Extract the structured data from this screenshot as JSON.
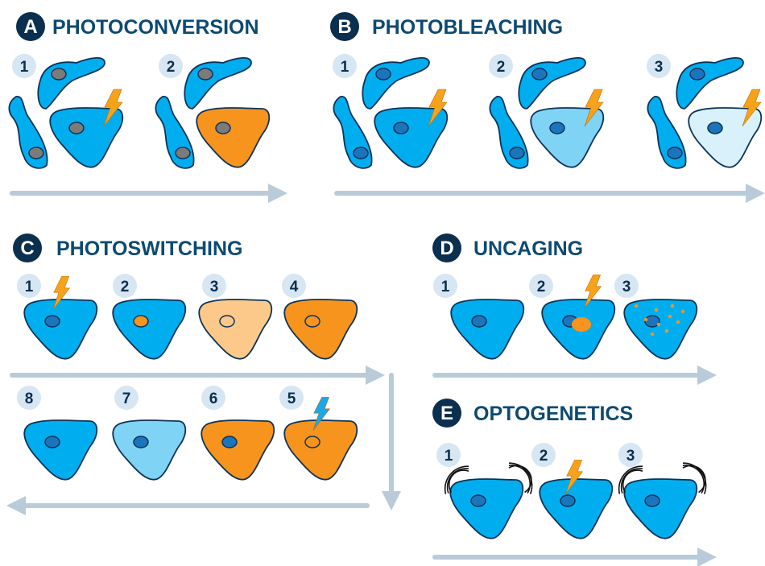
{
  "colors": {
    "cell_blue": "#00aeef",
    "cell_light_blue": "#7fd3f5",
    "cell_pale_blue": "#d9f1fb",
    "cell_orange": "#f7941d",
    "cell_light_orange": "#fdc98a",
    "outline": "#0d3358",
    "nucleus_gray": "#7b7b7b",
    "nucleus_blue": "#1b75bc",
    "title": "#0d4a72",
    "badge": "#0b2f4e",
    "step_circle": "#d6e6f2",
    "arrow": "#b9cbd8",
    "lightning_orange": "#f7a21b",
    "lightning_blue": "#1ba8e8"
  },
  "panels": [
    {
      "letter": "A",
      "title": "PHOTOCONVERSION",
      "steps": [
        {
          "label": "1",
          "target": "cell_blue",
          "lightning": "orange"
        },
        {
          "label": "2",
          "target": "cell_orange"
        }
      ]
    },
    {
      "letter": "B",
      "title": "PHOTOBLEACHING",
      "steps": [
        {
          "label": "1",
          "target": "cell_blue",
          "lightning": "orange"
        },
        {
          "label": "2",
          "target": "cell_light_blue",
          "lightning": "orange"
        },
        {
          "label": "3",
          "target": "cell_pale_blue",
          "lightning": "orange"
        }
      ]
    },
    {
      "letter": "C",
      "title": "PHOTOSWITCHING",
      "steps": [
        {
          "label": "1",
          "fill": "cell_blue",
          "nucleus": "nucleus_blue",
          "lightning": "orange"
        },
        {
          "label": "2",
          "fill": "cell_blue",
          "nucleus": "cell_orange"
        },
        {
          "label": "3",
          "fill": "cell_light_orange",
          "nucleus": "cell_light_orange"
        },
        {
          "label": "4",
          "fill": "cell_orange",
          "nucleus": "cell_orange"
        },
        {
          "label": "5",
          "fill": "cell_orange",
          "nucleus": "cell_orange",
          "lightning": "blue"
        },
        {
          "label": "6",
          "fill": "cell_orange",
          "nucleus": "nucleus_blue"
        },
        {
          "label": "7",
          "fill": "cell_light_blue",
          "nucleus": "nucleus_blue"
        },
        {
          "label": "8",
          "fill": "cell_blue",
          "nucleus": "nucleus_blue"
        }
      ]
    },
    {
      "letter": "D",
      "title": "UNCAGING",
      "steps": [
        {
          "label": "1",
          "fill": "cell_blue",
          "nucleus": "nucleus_blue"
        },
        {
          "label": "2",
          "fill": "cell_blue",
          "nucleus": "nucleus_blue",
          "lightning": "orange",
          "cage": "blob"
        },
        {
          "label": "3",
          "fill": "cell_blue",
          "nucleus": "nucleus_blue",
          "cage": "dots"
        }
      ]
    },
    {
      "letter": "E",
      "title": "OPTOGENETICS",
      "steps": [
        {
          "label": "1",
          "fill": "cell_blue",
          "nucleus": "nucleus_blue",
          "waves": true
        },
        {
          "label": "2",
          "fill": "cell_blue",
          "nucleus": "nucleus_blue",
          "lightning": "orange"
        },
        {
          "label": "3",
          "fill": "cell_blue",
          "nucleus": "nucleus_blue",
          "waves": true
        }
      ]
    }
  ]
}
